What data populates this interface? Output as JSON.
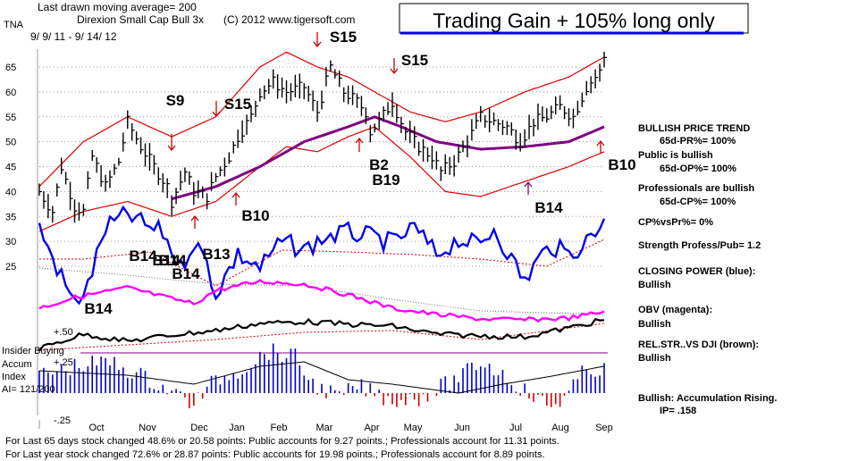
{
  "header": {
    "ma_line": "Last drawn moving average= 200",
    "ticker": "TNA",
    "fund_name": "Direxion Small Cap Bull 3x",
    "copyright": "(C) 2012 www.tigersoft.com",
    "date_range": "9/ 9/ 11 - 9/ 14/ 12",
    "banner": "Trading Gain + 105% long only"
  },
  "chart_data": {
    "type": "line",
    "x": [
      "Oct",
      "Nov",
      "Dec",
      "Jan",
      "Feb",
      "Mar",
      "Apr",
      "May",
      "Jun",
      "Jul",
      "Aug",
      "Sep"
    ],
    "yticks": [
      65,
      60,
      55,
      50,
      45,
      40,
      35,
      30,
      25
    ],
    "ylim": [
      18,
      68
    ],
    "accum_ticks": [
      "+.50",
      "+.25",
      "-.25"
    ],
    "grid": true,
    "price_anchors": [
      [
        0,
        40
      ],
      [
        3,
        36
      ],
      [
        5,
        45
      ],
      [
        8,
        37
      ],
      [
        10,
        36
      ],
      [
        12,
        47
      ],
      [
        15,
        41
      ],
      [
        18,
        46
      ],
      [
        20,
        54
      ],
      [
        23,
        49
      ],
      [
        26,
        45
      ],
      [
        29,
        41
      ],
      [
        30,
        38
      ],
      [
        33,
        44
      ],
      [
        35,
        40
      ],
      [
        38,
        39
      ],
      [
        40,
        43
      ],
      [
        43,
        47
      ],
      [
        45,
        51
      ],
      [
        48,
        55
      ],
      [
        50,
        60
      ],
      [
        53,
        62
      ],
      [
        56,
        60
      ],
      [
        60,
        61
      ],
      [
        63,
        56
      ],
      [
        66,
        65
      ],
      [
        69,
        60
      ],
      [
        72,
        58
      ],
      [
        74,
        56
      ],
      [
        75,
        52
      ],
      [
        77,
        54
      ],
      [
        80,
        58
      ],
      [
        83,
        52
      ],
      [
        86,
        49
      ],
      [
        89,
        47
      ],
      [
        91,
        44
      ],
      [
        94,
        46
      ],
      [
        97,
        50
      ],
      [
        100,
        55
      ],
      [
        103,
        54
      ],
      [
        106,
        53
      ],
      [
        109,
        50
      ],
      [
        112,
        54
      ],
      [
        115,
        55
      ],
      [
        118,
        57
      ],
      [
        121,
        55
      ],
      [
        124,
        61
      ],
      [
        127,
        64
      ],
      [
        128,
        67
      ]
    ],
    "ma200_anchors": [
      [
        30,
        38.5
      ],
      [
        40,
        41
      ],
      [
        50,
        45
      ],
      [
        60,
        50
      ],
      [
        70,
        53
      ],
      [
        76,
        55
      ],
      [
        82,
        53
      ],
      [
        90,
        50
      ],
      [
        100,
        48.5
      ],
      [
        110,
        49
      ],
      [
        120,
        50
      ],
      [
        128,
        53
      ]
    ],
    "band_upper_anchors": [
      [
        0,
        41
      ],
      [
        10,
        50
      ],
      [
        20,
        55
      ],
      [
        30,
        51
      ],
      [
        40,
        55
      ],
      [
        50,
        65
      ],
      [
        56,
        68
      ],
      [
        63,
        65
      ],
      [
        70,
        63
      ],
      [
        76,
        60
      ],
      [
        84,
        56
      ],
      [
        92,
        54
      ],
      [
        100,
        56
      ],
      [
        110,
        60
      ],
      [
        120,
        63
      ],
      [
        128,
        67
      ]
    ],
    "band_lower_anchors": [
      [
        0,
        32
      ],
      [
        10,
        36
      ],
      [
        20,
        38
      ],
      [
        30,
        35
      ],
      [
        40,
        38
      ],
      [
        50,
        45
      ],
      [
        56,
        49
      ],
      [
        63,
        48
      ],
      [
        70,
        51
      ],
      [
        76,
        53
      ],
      [
        84,
        47
      ],
      [
        92,
        40
      ],
      [
        100,
        39
      ],
      [
        110,
        42
      ],
      [
        120,
        45
      ],
      [
        128,
        48
      ]
    ],
    "annotations": [
      {
        "label": "S9",
        "i": 12,
        "v": 56
      },
      {
        "label": "S15",
        "i": 46,
        "v": 55
      },
      {
        "label": "S15",
        "i": 55,
        "v": 67
      },
      {
        "label": "S15",
        "i": 71,
        "v": 63
      },
      {
        "label": "B2",
        "i": 77,
        "v": 43
      },
      {
        "label": "B19",
        "i": 77,
        "v": 40
      },
      {
        "label": "B10",
        "i": 45,
        "v": 34.5
      },
      {
        "label": "B10",
        "i": 123,
        "v": 44
      },
      {
        "label": "B14",
        "i": 104,
        "v": 36
      },
      {
        "label": "B13",
        "i": 30,
        "v": 23
      },
      {
        "label": "B14",
        "i": 7,
        "v": 21
      },
      {
        "label": "B14",
        "i": 20,
        "v": 19
      },
      {
        "label": "B14",
        "i": 2,
        "v": 13.5
      },
      {
        "label": "B14",
        "i": 16,
        "v": 16.5
      },
      {
        "label": "B14",
        "i": 16,
        "v": 15.5
      }
    ]
  },
  "sidebar": {
    "items": [
      "BULLISH PRICE TREND",
      "65d-PR%= 100%",
      "Public is bullish",
      "65d-OP%= 100%",
      "Professionals are bullish",
      "65d-CP%= 100%",
      "CP%vsPr%= 0%",
      "Strength Profess/Pub= 1.2",
      "CLOSING POWER (blue):",
      "Bullish",
      "OBV (magenta):",
      "Bullish",
      "REL.STR..VS DJI (brown):",
      "Bullish",
      "Bullish: Accumulation Rising.",
      "IP= .158"
    ]
  },
  "left_labels": {
    "insider": "Insider Buying",
    "accum": "Accum",
    "index": "Index",
    "ai": "AI= 121/200"
  },
  "footer": {
    "line1": "For Last 65 days stock changed 48.6% or 20.58 points: Public accounts for 9.27 points.; Professionals account for 11.31 points.",
    "line2": "For Last year stock changed 72.6% or 28.87 points: Public accounts for 19.98 points.; Professionals account for 8.89 points."
  },
  "colors": {
    "price": "#000000",
    "bands": "#dd0000",
    "ma200": "#800080",
    "closing_power": "#0000ee",
    "obv": "#ff00ff",
    "accum_positive": "#0000cc",
    "accum_negative": "#cc0000",
    "banner_underline": "#0000ee"
  }
}
